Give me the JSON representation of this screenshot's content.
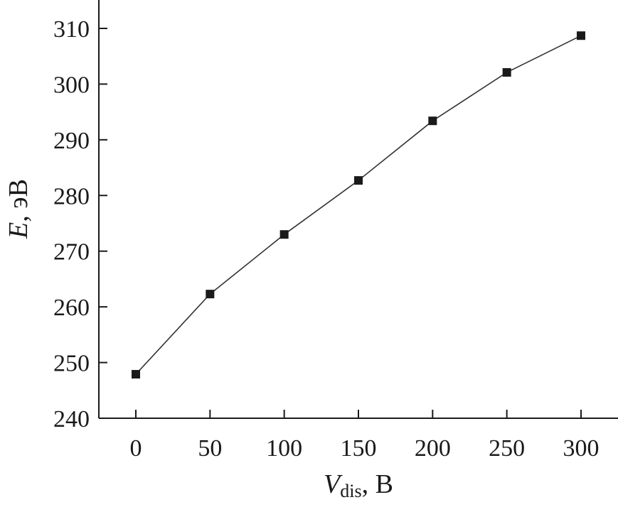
{
  "chart_data": {
    "type": "line",
    "x": [
      0,
      50,
      100,
      150,
      200,
      250,
      300
    ],
    "series": [
      {
        "values": [
          247.9,
          262.3,
          273.0,
          282.7,
          293.4,
          302.1,
          308.7
        ],
        "marker": "square"
      }
    ],
    "xlabel": {
      "main": "V",
      "sub": "dis",
      "unit": ", В"
    },
    "ylabel": {
      "main": "E",
      "unit": ", эВ"
    },
    "xticks": [
      0,
      50,
      100,
      150,
      200,
      250,
      300
    ],
    "yticks": [
      240,
      250,
      260,
      270,
      280,
      290,
      300,
      310
    ],
    "xlim": [
      -25,
      325
    ],
    "ylim": [
      240,
      314.5
    ],
    "grid": false,
    "colors": {
      "line": "#333333",
      "marker": "#1a1a1a",
      "axis": "#1a1a1a"
    }
  }
}
